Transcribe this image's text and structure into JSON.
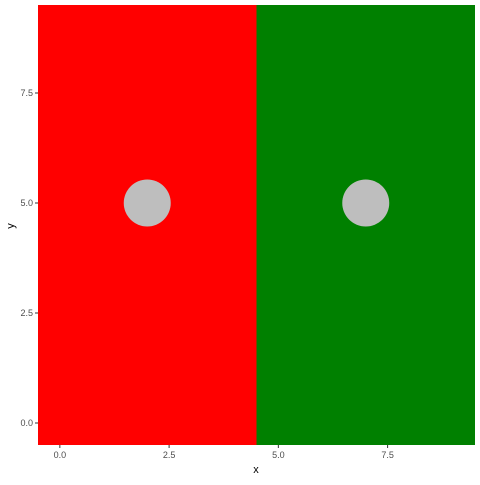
{
  "chart_data": {
    "type": "scatter",
    "title": "",
    "xlabel": "x",
    "ylabel": "y",
    "xlim": [
      -0.5,
      9.5
    ],
    "ylim": [
      -0.5,
      9.5
    ],
    "x_ticks": [
      {
        "value": 0,
        "label": "0.0"
      },
      {
        "value": 2.5,
        "label": "2.5"
      },
      {
        "value": 5,
        "label": "5.0"
      },
      {
        "value": 7.5,
        "label": "7.5"
      }
    ],
    "y_ticks": [
      {
        "value": 0,
        "label": "0.0"
      },
      {
        "value": 2.5,
        "label": "2.5"
      },
      {
        "value": 5,
        "label": "5.0"
      },
      {
        "value": 7.5,
        "label": "7.5"
      }
    ],
    "grid": false,
    "background_panels": [
      {
        "xmin": -0.5,
        "xmax": 4.5,
        "ymin": -0.5,
        "ymax": 9.5,
        "color": "#ff0000"
      },
      {
        "xmin": 4.5,
        "xmax": 9.5,
        "ymin": -0.5,
        "ymax": 9.5,
        "color": "#008000"
      }
    ],
    "points": [
      {
        "x": 2,
        "y": 5,
        "color": "#bebebe"
      },
      {
        "x": 7,
        "y": 5,
        "color": "#bebebe"
      }
    ]
  }
}
